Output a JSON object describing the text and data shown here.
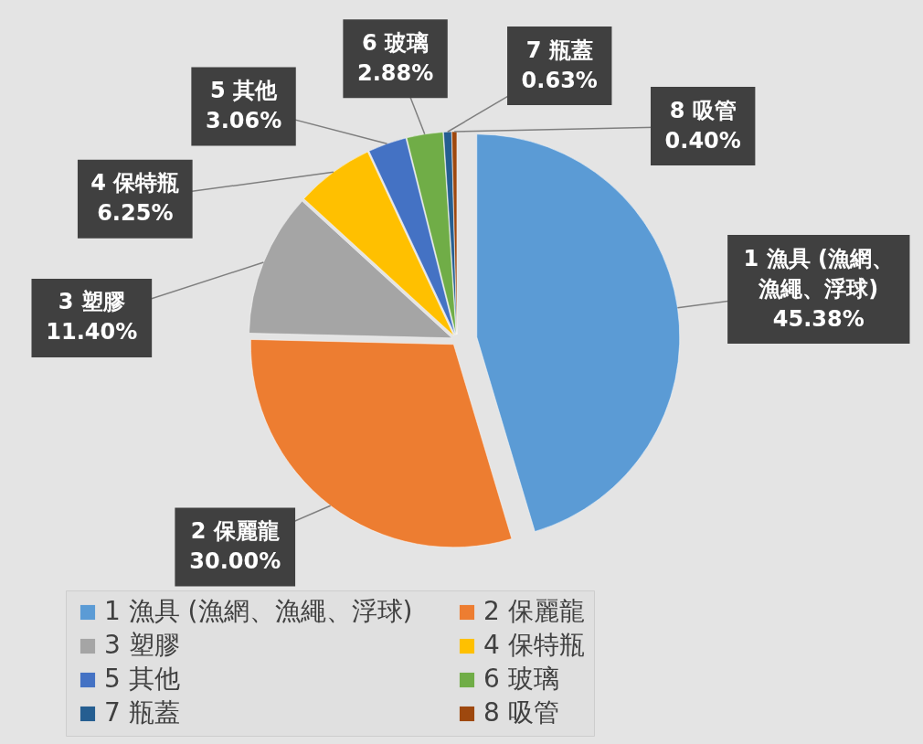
{
  "chart_data": {
    "type": "pie",
    "categories": [
      "1 漁具 (漁網、漁繩、浮球)",
      "2 保麗龍",
      "3 塑膠",
      "4 保特瓶",
      "5 其他",
      "6 玻璃",
      "7 瓶蓋",
      "8 吸管"
    ],
    "values": [
      45.38,
      30.0,
      11.4,
      6.25,
      3.06,
      2.88,
      0.63,
      0.4
    ],
    "colors": [
      "#5b9bd5",
      "#ed7d31",
      "#a5a5a5",
      "#ffc000",
      "#4472c4",
      "#70ad47",
      "#255e91",
      "#9e480e"
    ],
    "value_labels": [
      "45.38%",
      "30.00%",
      "11.40%",
      "6.25%",
      "3.06%",
      "2.88%",
      "0.63%",
      "0.40%"
    ],
    "legend": "bottom"
  }
}
